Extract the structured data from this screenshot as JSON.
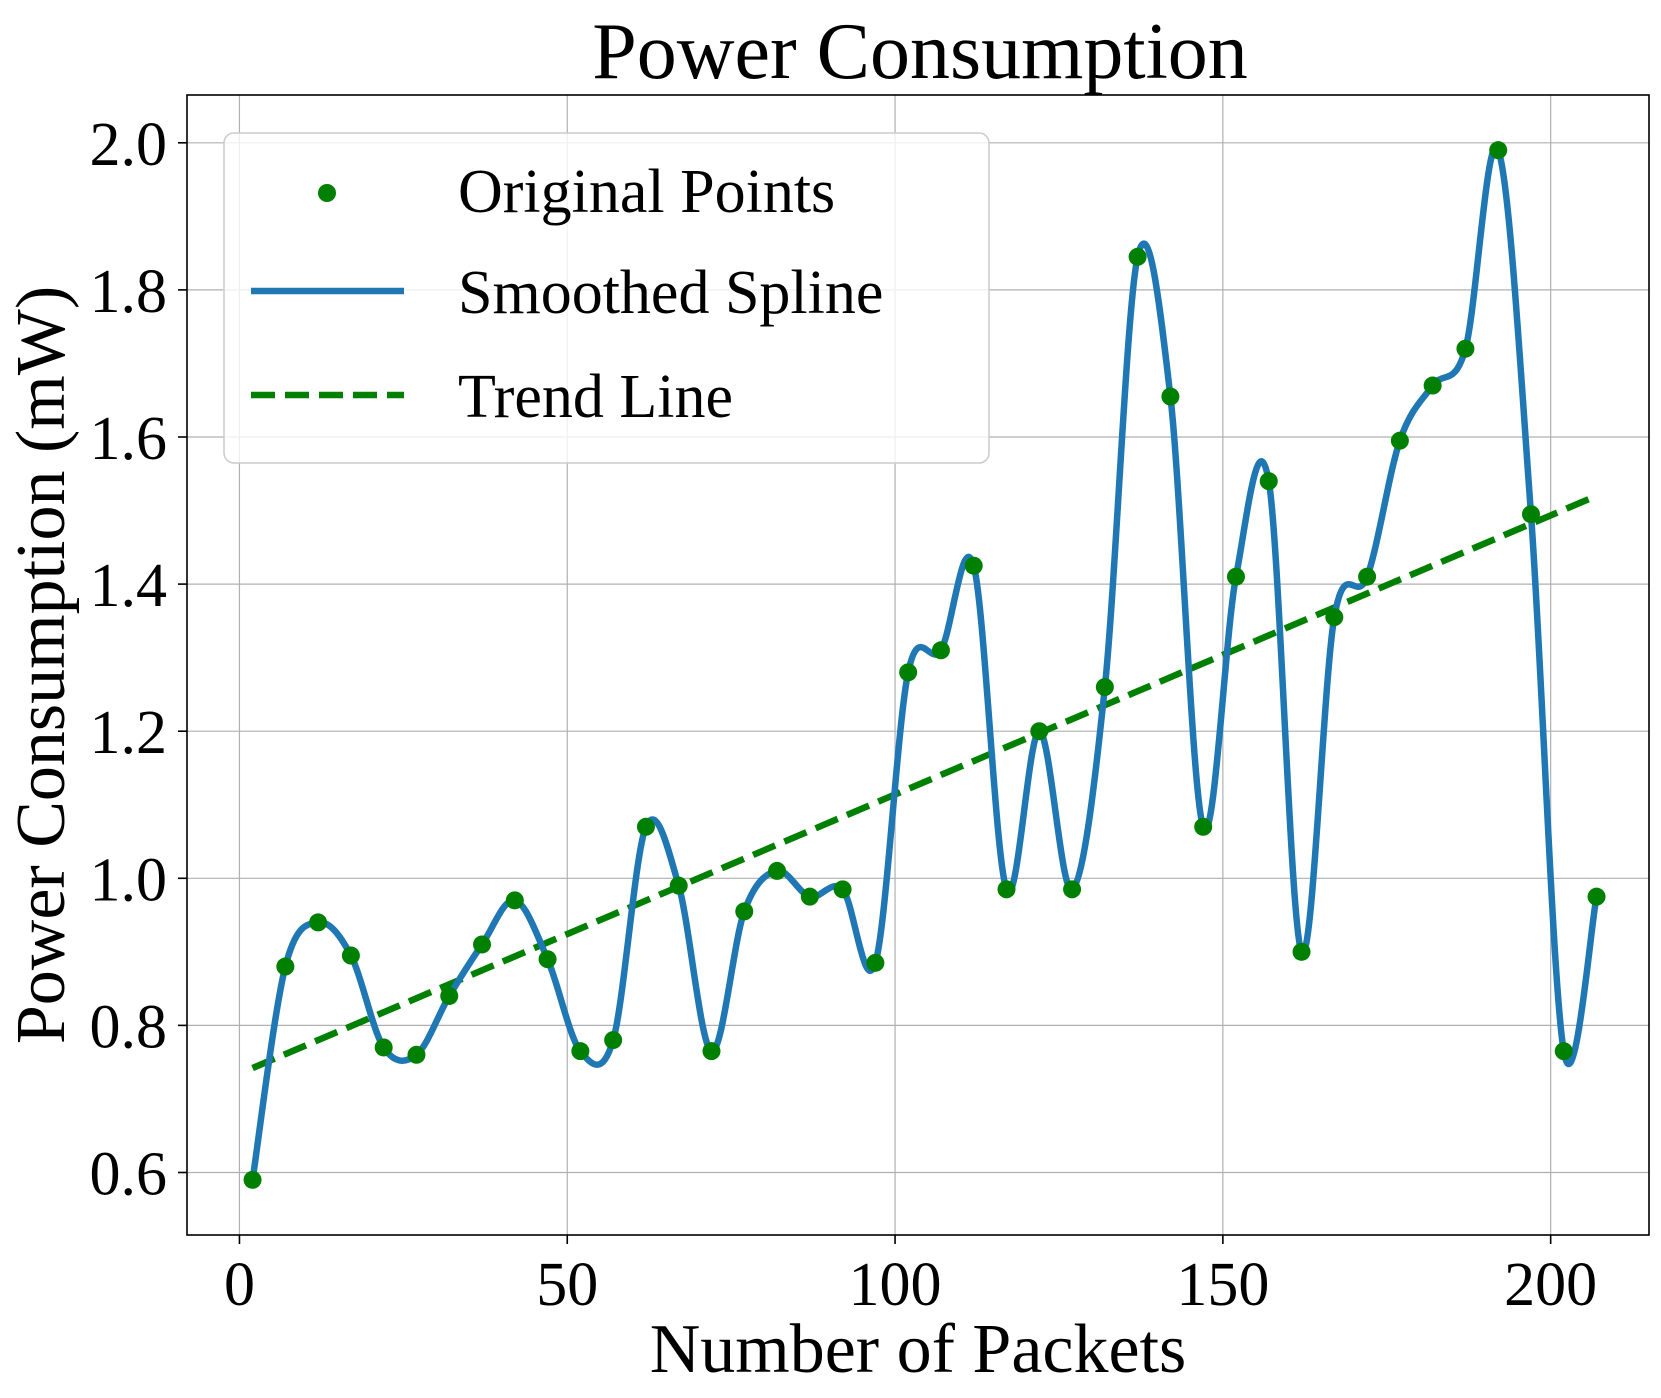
{
  "chart_data": {
    "type": "line",
    "title": "Power Consumption",
    "xlabel": "Number of Packets",
    "ylabel": "Power Consumption (mW)",
    "xlim": [
      -8,
      215
    ],
    "ylim": [
      0.515,
      2.065
    ],
    "xticks": [
      0,
      50,
      100,
      150,
      200
    ],
    "yticks": [
      0.6,
      0.8,
      1.0,
      1.2,
      1.4,
      1.6,
      1.8,
      2.0
    ],
    "xtick_labels": [
      "0",
      "50",
      "100",
      "150",
      "200"
    ],
    "ytick_labels": [
      "0.6",
      "0.8",
      "1.0",
      "1.2",
      "1.4",
      "1.6",
      "1.8",
      "2.0"
    ],
    "grid": true,
    "legend_position": "top-left",
    "series": [
      {
        "name": "Original Points",
        "kind": "scatter",
        "color": "#008000",
        "x": [
          2,
          7,
          12,
          17,
          22,
          27,
          32,
          37,
          42,
          47,
          52,
          57,
          62,
          67,
          72,
          77,
          82,
          87,
          92,
          97,
          102,
          107,
          112,
          117,
          122,
          127,
          132,
          137,
          142,
          147,
          152,
          157,
          162,
          167,
          172,
          177,
          182,
          187,
          192,
          197,
          202,
          207
        ],
        "y": [
          0.59,
          0.88,
          0.94,
          0.895,
          0.77,
          0.76,
          0.84,
          0.91,
          0.97,
          0.89,
          0.765,
          0.78,
          1.07,
          0.99,
          0.765,
          0.955,
          1.01,
          0.975,
          0.985,
          0.885,
          1.28,
          1.31,
          1.425,
          0.985,
          1.2,
          0.985,
          1.26,
          1.845,
          1.655,
          1.07,
          1.41,
          1.54,
          0.9,
          1.355,
          1.41,
          1.595,
          1.67,
          1.72,
          1.99,
          1.495,
          0.765,
          0.975
        ]
      },
      {
        "name": "Smoothed Spline",
        "kind": "line",
        "color": "#1f77b4",
        "x": [
          2,
          7,
          12,
          17,
          22,
          27,
          32,
          37,
          42,
          47,
          52,
          57,
          62,
          67,
          72,
          77,
          82,
          87,
          92,
          97,
          102,
          107,
          112,
          117,
          122,
          127,
          132,
          137,
          142,
          147,
          152,
          157,
          162,
          167,
          172,
          177,
          182,
          187,
          192,
          197,
          202,
          207
        ],
        "y": [
          0.59,
          0.88,
          0.94,
          0.895,
          0.77,
          0.76,
          0.84,
          0.91,
          0.97,
          0.89,
          0.765,
          0.78,
          1.07,
          0.99,
          0.765,
          0.955,
          1.01,
          0.975,
          0.985,
          0.885,
          1.28,
          1.31,
          1.425,
          0.985,
          1.2,
          0.985,
          1.26,
          1.845,
          1.655,
          1.07,
          1.41,
          1.54,
          0.9,
          1.355,
          1.41,
          1.595,
          1.67,
          1.72,
          1.99,
          1.495,
          0.765,
          0.975
        ]
      },
      {
        "name": "Trend Line",
        "kind": "dashed-line",
        "color": "#008000",
        "x": [
          2,
          207
        ],
        "y": [
          0.742,
          1.52
        ]
      }
    ]
  }
}
